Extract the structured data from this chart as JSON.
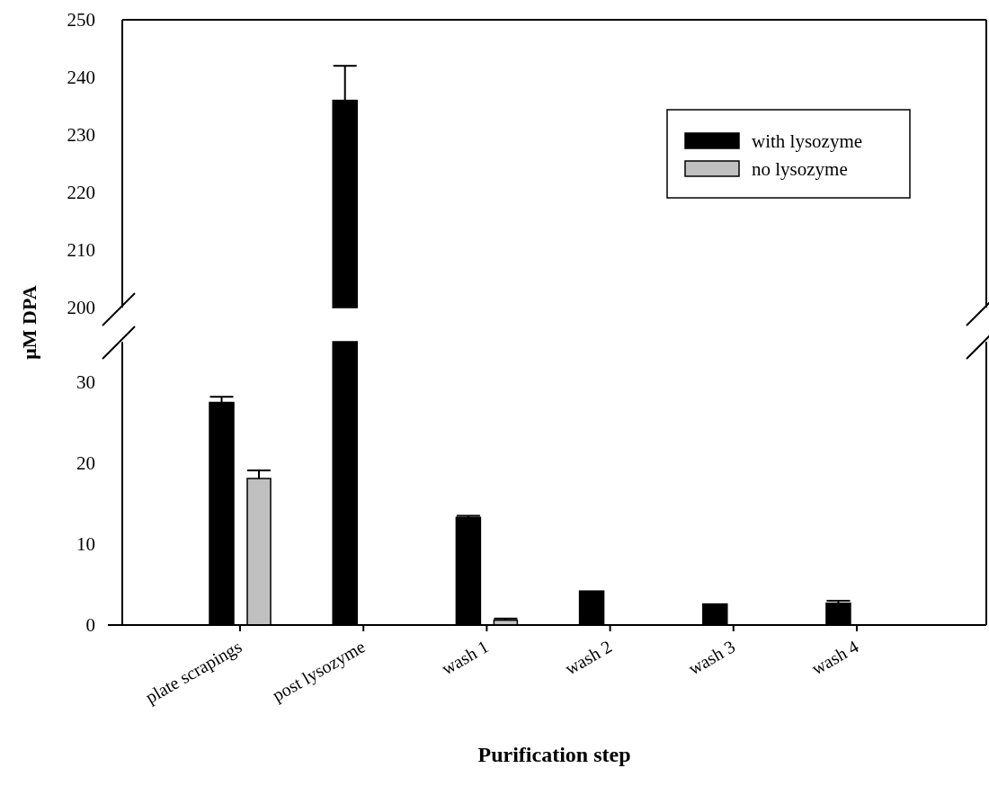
{
  "chart_data": [
    {
      "type": "bar",
      "ylim": [
        200,
        250
      ],
      "yticks": [
        200,
        210,
        220,
        230,
        240,
        250
      ],
      "tick_labels": "y",
      "series": [
        {
          "color": "#000000",
          "values": [
            null,
            236,
            null,
            null,
            null,
            null
          ],
          "errors": [
            null,
            6,
            null,
            null,
            null,
            null
          ]
        }
      ]
    },
    {
      "type": "bar",
      "categories": [
        "plate scrapings",
        "post lysozyme",
        "wash 1",
        "wash 2",
        "wash 3",
        "wash 4"
      ],
      "ylim": [
        0,
        35
      ],
      "yticks": [
        0,
        10,
        20,
        30
      ],
      "xlabel": "Purification step",
      "ylabel": "μM DPA",
      "legend": "top right",
      "series": [
        {
          "name": "with lysozyme",
          "color": "#000000",
          "values": [
            27.5,
            35,
            13.3,
            4.2,
            2.6,
            2.7
          ],
          "errors": [
            0.7,
            null,
            0.2,
            null,
            null,
            0.3
          ]
        },
        {
          "name": "no lysozyme",
          "color": "#c0c0c0",
          "values": [
            18.1,
            null,
            0.6,
            null,
            null,
            null
          ],
          "errors": [
            1.0,
            null,
            0.2,
            null,
            null,
            null
          ]
        }
      ]
    }
  ]
}
